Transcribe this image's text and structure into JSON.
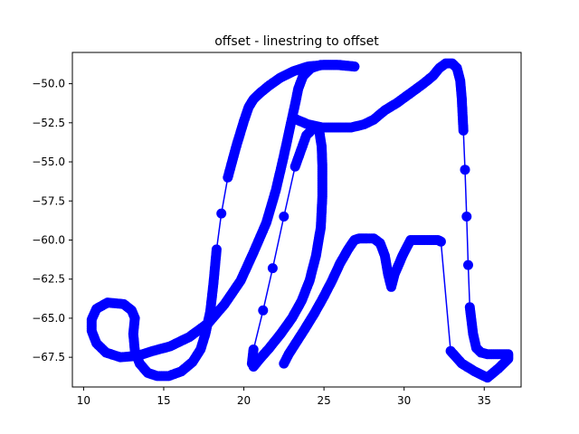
{
  "chart_data": {
    "type": "line",
    "title": "offset - linestring to offset",
    "xlabel": "",
    "ylabel": "",
    "xlim": [
      9.3,
      37.3
    ],
    "ylim": [
      -69.4,
      -48.0
    ],
    "x_ticks": [
      10,
      15,
      20,
      25,
      30,
      35
    ],
    "y_ticks": [
      -50.0,
      -52.5,
      -55.0,
      -57.5,
      -60.0,
      -62.5,
      -65.0,
      -67.5
    ],
    "x_tick_labels": [
      "10",
      "15",
      "20",
      "25",
      "30",
      "35"
    ],
    "y_tick_labels": [
      "−50.0",
      "−52.5",
      "−55.0",
      "−57.5",
      "−60.0",
      "−62.5",
      "−65.0",
      "−67.5"
    ],
    "grid": false,
    "legend": "none",
    "series": [
      {
        "color": "#0000ff",
        "marker": "o",
        "x": [
          20.6,
          21.0,
          21.6,
          22.3,
          23.0,
          23.6,
          24.1,
          24.5,
          24.8,
          24.9,
          24.9,
          24.85,
          24.7,
          24.4,
          23.9,
          23.2,
          22.5,
          21.8,
          21.2,
          20.6,
          20.5
        ],
        "y": [
          -68.1,
          -67.6,
          -66.9,
          -66.0,
          -65.0,
          -63.9,
          -62.6,
          -61.0,
          -59.2,
          -57.2,
          -55.2,
          -54.0,
          -53.0,
          -52.8,
          -53.3,
          -55.3,
          -58.5,
          -61.8,
          -64.5,
          -67.0,
          -67.9
        ]
      },
      {
        "color": "#0000ff",
        "marker": "o",
        "x": [
          26.9,
          25.8,
          24.8,
          24.2,
          23.7,
          23.4,
          23.2,
          22.9,
          22.5,
          22.0,
          21.4,
          20.6,
          19.8,
          18.8,
          17.8,
          16.6,
          15.4,
          14.3,
          13.4,
          12.3,
          11.4,
          10.8,
          10.5,
          10.5,
          10.8,
          11.5,
          12.5,
          13.0,
          13.2,
          13.1,
          13.2,
          13.5,
          14.0,
          14.6,
          15.3,
          16.1,
          16.8,
          17.3,
          17.6,
          17.9,
          18.1,
          18.3,
          18.6,
          19.0,
          19.5,
          20.0,
          20.3,
          20.6,
          21.0,
          21.6,
          22.3,
          23.1,
          24.0,
          25.0,
          26.0,
          26.9
        ],
        "y": [
          -48.9,
          -48.8,
          -48.8,
          -49.0,
          -49.5,
          -50.3,
          -51.3,
          -52.7,
          -54.6,
          -56.8,
          -58.9,
          -60.8,
          -62.6,
          -64.1,
          -65.3,
          -66.2,
          -66.8,
          -67.1,
          -67.4,
          -67.5,
          -67.2,
          -66.6,
          -65.8,
          -65.1,
          -64.4,
          -64.0,
          -64.1,
          -64.5,
          -65.0,
          -66.0,
          -67.1,
          -67.9,
          -68.5,
          -68.7,
          -68.7,
          -68.4,
          -67.8,
          -67.0,
          -66.0,
          -64.6,
          -62.8,
          -60.6,
          -58.3,
          -56.0,
          -54.1,
          -52.4,
          -51.5,
          -51.0,
          -50.6,
          -50.1,
          -49.6,
          -49.2,
          -48.9,
          -48.8,
          -48.8,
          -48.9
        ]
      },
      {
        "color": "#0000ff",
        "marker": "o",
        "x": [
          23.3,
          24.0,
          24.9,
          25.8,
          26.7,
          27.5,
          28.1,
          28.8,
          29.6,
          30.4,
          31.2,
          31.8,
          32.2,
          32.6,
          33.0,
          33.3,
          33.5,
          33.6,
          33.7,
          33.8,
          33.9,
          34.0,
          34.1,
          34.3,
          34.5,
          34.8,
          35.2,
          36.5,
          36.5,
          35.9,
          35.2,
          34.4,
          33.6,
          32.9,
          32.3,
          32.1,
          31.7,
          31.3,
          30.8,
          30.4,
          29.9,
          29.4,
          29.2,
          29.0,
          28.8,
          28.5,
          28.1,
          27.7,
          27.5,
          27.2,
          26.9,
          26.5,
          26.0,
          25.5,
          25.0,
          24.4,
          23.8,
          23.3,
          22.8,
          22.5
        ],
        "y": [
          -52.3,
          -52.6,
          -52.8,
          -52.8,
          -52.8,
          -52.6,
          -52.3,
          -51.7,
          -51.2,
          -50.6,
          -50.0,
          -49.5,
          -49.0,
          -48.7,
          -48.7,
          -49.0,
          -49.8,
          -51.0,
          -53.0,
          -55.5,
          -58.5,
          -61.6,
          -64.3,
          -66.0,
          -66.9,
          -67.2,
          -67.3,
          -67.3,
          -67.6,
          -68.2,
          -68.8,
          -68.4,
          -67.9,
          -67.1,
          -60.1,
          -60.0,
          -60.0,
          -60.0,
          -60.0,
          -60.0,
          -61.0,
          -62.2,
          -63.0,
          -62.2,
          -61.0,
          -60.2,
          -59.9,
          -59.9,
          -59.9,
          -59.9,
          -60.0,
          -60.6,
          -61.5,
          -62.6,
          -63.6,
          -64.7,
          -65.7,
          -66.5,
          -67.3,
          -67.9
        ]
      }
    ]
  }
}
